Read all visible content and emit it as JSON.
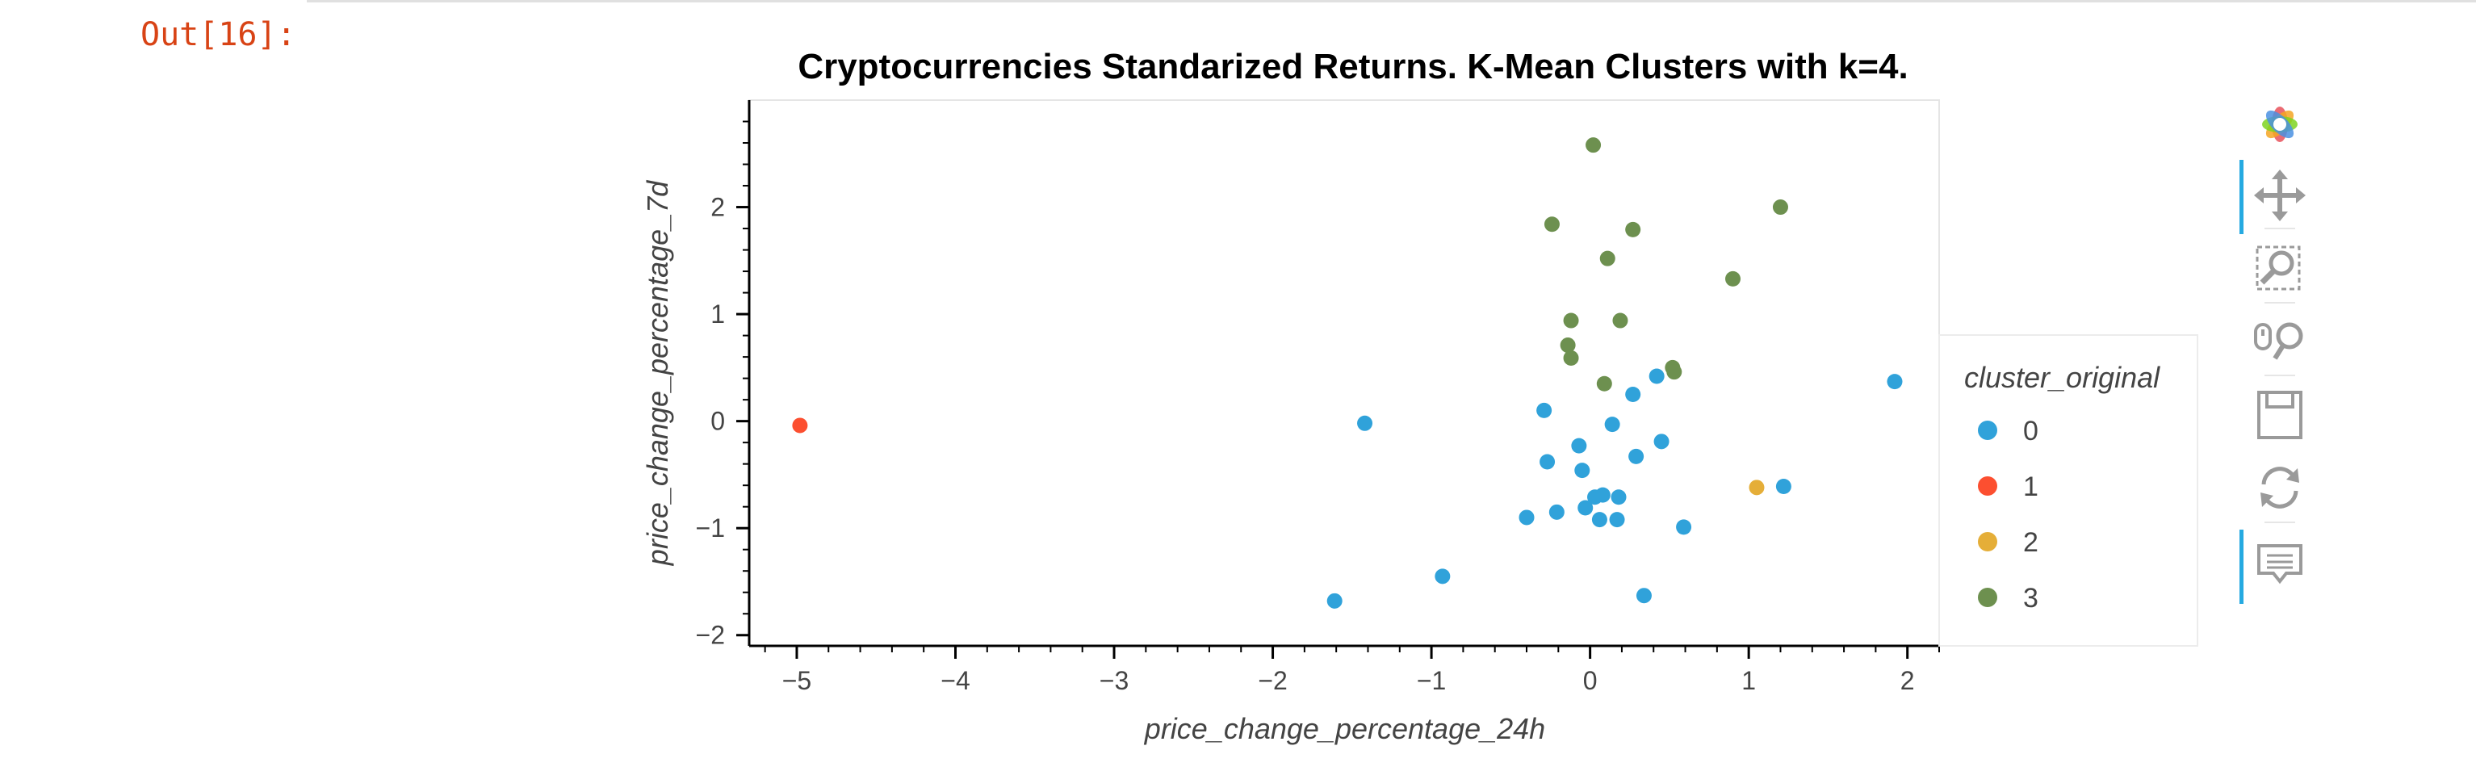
{
  "cell": {
    "out_label": "Out[16]:"
  },
  "toolbar": {
    "items": [
      {
        "name": "bokeh-logo-icon"
      },
      {
        "name": "pan-icon",
        "active": true
      },
      {
        "name": "box-zoom-icon"
      },
      {
        "name": "wheel-zoom-icon"
      },
      {
        "name": "save-icon"
      },
      {
        "name": "reset-icon"
      },
      {
        "name": "hover-icon",
        "active": true
      }
    ]
  },
  "chart_data": {
    "type": "scatter",
    "title": "Cryptocurrencies Standarized Returns. K-Mean Clusters with k=4.",
    "xlabel": "price_change_percentage_24h",
    "ylabel": "price_change_percentage_7d",
    "xlim": [
      -5.3,
      2.2
    ],
    "ylim": [
      -2.1,
      3.0
    ],
    "xticks": [
      -5,
      -4,
      -3,
      -2,
      -1,
      0,
      1,
      2
    ],
    "yticks": [
      -2,
      -1,
      0,
      1,
      2
    ],
    "grid": false,
    "legend": {
      "title": "cluster_original",
      "placement": "right"
    },
    "series": [
      {
        "name": "0",
        "color": "#30a2da",
        "points": [
          [
            -1.42,
            -0.02
          ],
          [
            -1.61,
            -1.68
          ],
          [
            -0.93,
            -1.45
          ],
          [
            -0.29,
            0.1
          ],
          [
            -0.27,
            -0.38
          ],
          [
            -0.4,
            -0.9
          ],
          [
            -0.21,
            -0.85
          ],
          [
            -0.07,
            -0.23
          ],
          [
            -0.05,
            -0.46
          ],
          [
            -0.03,
            -0.81
          ],
          [
            0.03,
            -0.71
          ],
          [
            0.08,
            -0.69
          ],
          [
            0.06,
            -0.92
          ],
          [
            0.14,
            -0.03
          ],
          [
            0.17,
            -0.92
          ],
          [
            0.18,
            -0.71
          ],
          [
            0.27,
            0.25
          ],
          [
            0.29,
            -0.33
          ],
          [
            0.42,
            0.42
          ],
          [
            0.45,
            -0.19
          ],
          [
            0.59,
            -0.99
          ],
          [
            0.34,
            -1.63
          ],
          [
            1.22,
            -0.61
          ],
          [
            1.92,
            0.37
          ]
        ]
      },
      {
        "name": "1",
        "color": "#fc4f30",
        "points": [
          [
            -4.98,
            -0.04
          ]
        ]
      },
      {
        "name": "2",
        "color": "#e5ae38",
        "points": [
          [
            1.05,
            -0.62
          ]
        ]
      },
      {
        "name": "3",
        "color": "#6d904f",
        "points": [
          [
            0.02,
            2.58
          ],
          [
            -0.24,
            1.84
          ],
          [
            0.27,
            1.79
          ],
          [
            0.11,
            1.52
          ],
          [
            1.2,
            2.0
          ],
          [
            0.9,
            1.33
          ],
          [
            -0.12,
            0.94
          ],
          [
            0.19,
            0.94
          ],
          [
            -0.14,
            0.71
          ],
          [
            -0.12,
            0.59
          ],
          [
            0.09,
            0.35
          ],
          [
            0.52,
            0.5
          ],
          [
            0.53,
            0.46
          ]
        ]
      }
    ]
  }
}
